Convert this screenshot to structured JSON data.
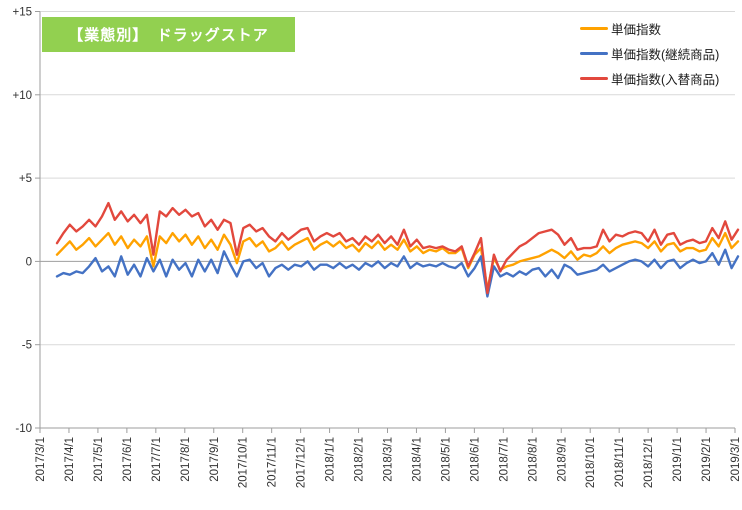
{
  "title": {
    "text": "【業態別】　ドラッグストア",
    "bg_color": "#92D050",
    "text_color": "#FFFFFF"
  },
  "legend": {
    "position": "top-right",
    "items": [
      {
        "label": "単価指数"
      },
      {
        "label": "単価指数(継続商品)"
      },
      {
        "label": "単価指数(入替商品)"
      }
    ]
  },
  "colors": {
    "gridline": "#D9D9D9",
    "axis": "#9E9E9E",
    "tick_text": "#333333",
    "background": "#FFFFFF"
  },
  "chart_data": {
    "type": "line",
    "title": "【業態別】　ドラッグストア",
    "xlabel": "",
    "ylabel": "",
    "ylim": [
      -10,
      15
    ],
    "grid": true,
    "legend_position": "top-right",
    "x_frequency": "weekly",
    "x_tick_labels": [
      "2017/3/1",
      "2017/4/1",
      "2017/5/1",
      "2017/6/1",
      "2017/7/1",
      "2017/8/1",
      "2017/9/1",
      "2017/10/1",
      "2017/11/1",
      "2017/12/1",
      "2018/1/1",
      "2018/2/1",
      "2018/3/1",
      "2018/4/1",
      "2018/5/1",
      "2018/6/1",
      "2018/7/1",
      "2018/8/1",
      "2018/9/1",
      "2018/10/1",
      "2018/11/1",
      "2018/12/1",
      "2019/1/1",
      "2019/2/1",
      "2019/3/1"
    ],
    "y_ticks": {
      "labels": [
        "+15",
        "+10",
        "+5",
        "0",
        "-5",
        "-10"
      ],
      "values": [
        15,
        10,
        5,
        0,
        -5,
        -10
      ]
    },
    "series": [
      {
        "name": "単価指数",
        "color": "#FFA200",
        "values": [
          0.4,
          0.8,
          1.2,
          0.7,
          1.0,
          1.4,
          0.9,
          1.3,
          1.7,
          1.0,
          1.5,
          0.8,
          1.3,
          0.9,
          1.5,
          -0.3,
          1.5,
          1.1,
          1.7,
          1.2,
          1.6,
          1.0,
          1.5,
          0.8,
          1.3,
          0.7,
          1.6,
          1.0,
          -0.1,
          1.2,
          1.4,
          0.9,
          1.2,
          0.6,
          0.8,
          1.2,
          0.7,
          1.0,
          1.2,
          1.4,
          0.7,
          1.0,
          1.2,
          0.9,
          1.2,
          0.8,
          1.0,
          0.6,
          1.1,
          0.8,
          1.2,
          0.7,
          1.0,
          0.7,
          1.3,
          0.6,
          0.9,
          0.5,
          0.7,
          0.6,
          0.8,
          0.5,
          0.5,
          0.8,
          -0.4,
          0.4,
          0.8,
          -1.7,
          0.2,
          -0.5,
          -0.3,
          -0.2,
          0.0,
          0.1,
          0.2,
          0.3,
          0.5,
          0.7,
          0.5,
          0.2,
          0.6,
          0.1,
          0.4,
          0.3,
          0.5,
          0.9,
          0.5,
          0.8,
          1.0,
          1.1,
          1.2,
          1.1,
          0.8,
          1.2,
          0.6,
          1.0,
          1.1,
          0.6,
          0.8,
          0.8,
          0.6,
          0.7,
          1.4,
          0.9,
          1.7,
          0.8,
          1.2
        ]
      },
      {
        "name": "単価指数(継続商品)",
        "color": "#4472C4",
        "values": [
          -0.9,
          -0.7,
          -0.8,
          -0.6,
          -0.7,
          -0.3,
          0.2,
          -0.6,
          -0.3,
          -0.9,
          0.3,
          -0.8,
          -0.2,
          -0.9,
          0.2,
          -0.6,
          0.1,
          -0.9,
          0.1,
          -0.5,
          -0.1,
          -0.9,
          0.1,
          -0.6,
          0.1,
          -0.7,
          0.6,
          -0.2,
          -0.9,
          0.0,
          0.1,
          -0.4,
          -0.1,
          -0.9,
          -0.4,
          -0.2,
          -0.5,
          -0.2,
          -0.3,
          0.0,
          -0.5,
          -0.2,
          -0.2,
          -0.4,
          -0.1,
          -0.4,
          -0.2,
          -0.5,
          -0.1,
          -0.3,
          0.0,
          -0.4,
          -0.1,
          -0.3,
          0.3,
          -0.4,
          -0.1,
          -0.3,
          -0.2,
          -0.3,
          -0.1,
          -0.3,
          -0.4,
          -0.1,
          -0.9,
          -0.4,
          0.3,
          -2.1,
          -0.3,
          -0.9,
          -0.7,
          -0.9,
          -0.6,
          -0.8,
          -0.5,
          -0.4,
          -0.9,
          -0.5,
          -1.0,
          -0.2,
          -0.4,
          -0.8,
          -0.7,
          -0.6,
          -0.5,
          -0.2,
          -0.6,
          -0.4,
          -0.2,
          0.0,
          0.1,
          0.0,
          -0.3,
          0.1,
          -0.4,
          0.0,
          0.1,
          -0.4,
          -0.1,
          0.1,
          -0.1,
          0.0,
          0.5,
          -0.2,
          0.7,
          -0.4,
          0.3
        ]
      },
      {
        "name": "単価指数(入替商品)",
        "color": "#E2483D",
        "values": [
          1.1,
          1.7,
          2.2,
          1.8,
          2.1,
          2.5,
          2.1,
          2.7,
          3.5,
          2.5,
          3.0,
          2.4,
          2.8,
          2.3,
          2.8,
          0.4,
          3.0,
          2.7,
          3.2,
          2.8,
          3.1,
          2.7,
          2.9,
          2.1,
          2.5,
          1.9,
          2.5,
          2.3,
          0.4,
          2.0,
          2.2,
          1.8,
          2.0,
          1.5,
          1.2,
          1.7,
          1.3,
          1.6,
          1.9,
          2.0,
          1.2,
          1.5,
          1.7,
          1.5,
          1.7,
          1.2,
          1.4,
          1.0,
          1.5,
          1.2,
          1.6,
          1.1,
          1.5,
          1.0,
          1.9,
          0.9,
          1.3,
          0.8,
          0.9,
          0.8,
          0.9,
          0.7,
          0.6,
          0.9,
          -0.3,
          0.5,
          1.4,
          -1.9,
          0.4,
          -0.6,
          0.1,
          0.5,
          0.9,
          1.1,
          1.4,
          1.7,
          1.8,
          1.9,
          1.6,
          1.0,
          1.4,
          0.7,
          0.8,
          0.8,
          0.9,
          1.9,
          1.2,
          1.6,
          1.5,
          1.7,
          1.8,
          1.7,
          1.2,
          1.9,
          1.0,
          1.6,
          1.7,
          1.0,
          1.2,
          1.3,
          1.1,
          1.2,
          2.0,
          1.4,
          2.4,
          1.3,
          1.9
        ]
      }
    ]
  }
}
